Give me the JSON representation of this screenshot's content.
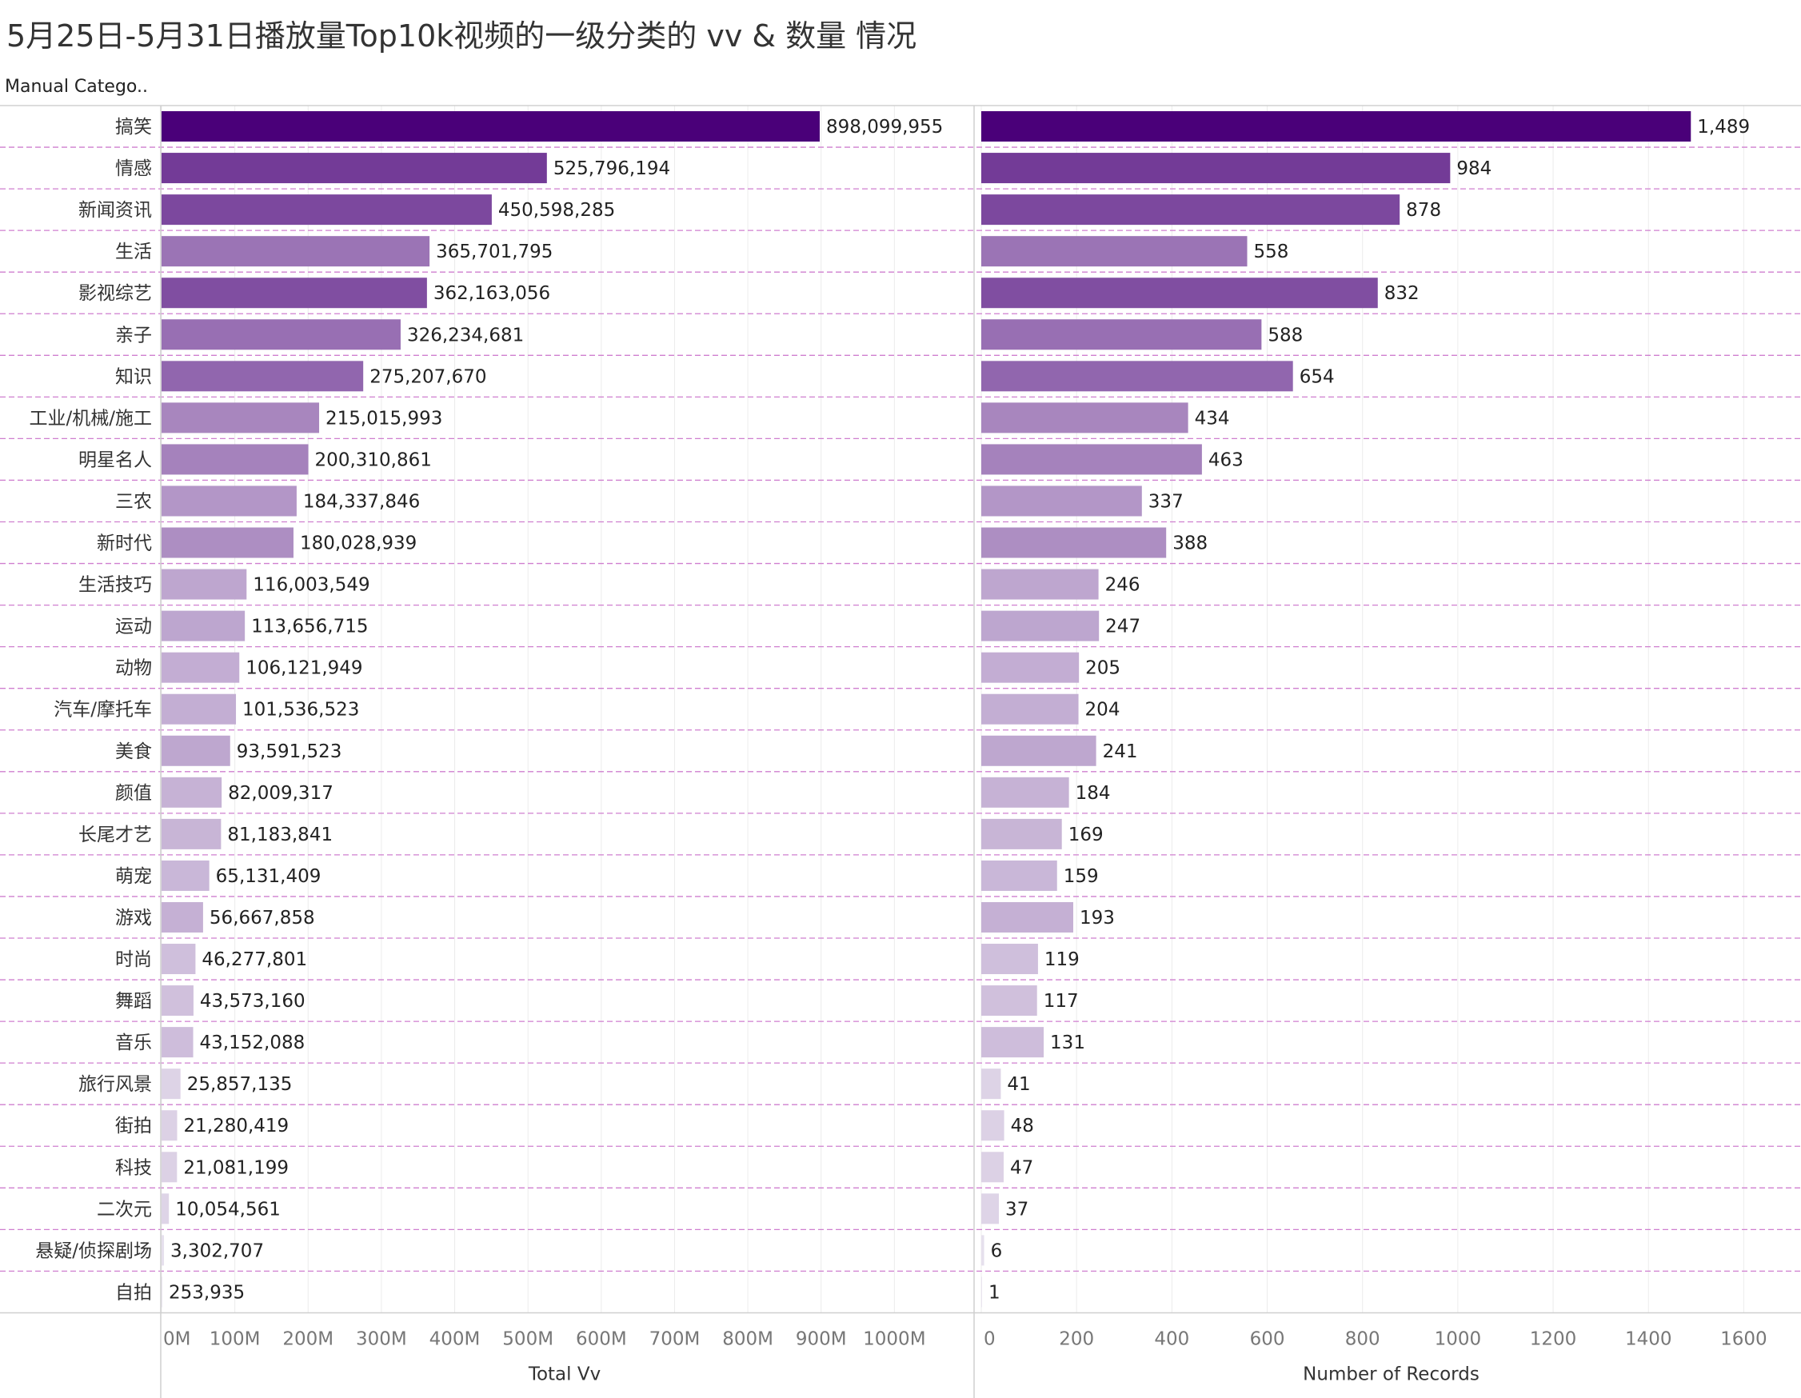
{
  "title": "5月25日-5月31日播放量Top10k视频的一级分类的 vv & 数量 情况",
  "column_header": "Manual Catego..",
  "chart_data": {
    "type": "bar",
    "orientation": "horizontal",
    "categories": [
      "搞笑",
      "情感",
      "新闻资讯",
      "生活",
      "影视综艺",
      "亲子",
      "知识",
      "工业/机械/施工",
      "明星名人",
      "三农",
      "新时代",
      "生活技巧",
      "运动",
      "动物",
      "汽车/摩托车",
      "美食",
      "颜值",
      "长尾才艺",
      "萌宠",
      "游戏",
      "时尚",
      "舞蹈",
      "音乐",
      "旅行风景",
      "街拍",
      "科技",
      "二次元",
      "悬疑/侦探剧场",
      "自拍"
    ],
    "series": [
      {
        "name": "Total Vv",
        "values": [
          898099955,
          525796194,
          450598285,
          365701795,
          362163056,
          326234681,
          275207670,
          215015993,
          200310861,
          184337846,
          180028939,
          116003549,
          113656715,
          106121949,
          101536523,
          93591523,
          82009317,
          81183841,
          65131409,
          56667858,
          46277801,
          43573160,
          43152088,
          25857135,
          21280419,
          21081199,
          10054561,
          3302707,
          253935
        ],
        "labels": [
          "898,099,955",
          "525,796,194",
          "450,598,285",
          "365,701,795",
          "362,163,056",
          "326,234,681",
          "275,207,670",
          "215,015,993",
          "200,310,861",
          "184,337,846",
          "180,028,939",
          "116,003,549",
          "113,656,715",
          "106,121,949",
          "101,536,523",
          "93,591,523",
          "82,009,317",
          "81,183,841",
          "65,131,409",
          "56,667,858",
          "46,277,801",
          "43,573,160",
          "43,152,088",
          "25,857,135",
          "21,280,419",
          "21,081,199",
          "10,054,561",
          "3,302,707",
          "253,935"
        ],
        "xlim": [
          0,
          1100000000
        ],
        "ticks": [
          0,
          100000000,
          200000000,
          300000000,
          400000000,
          500000000,
          600000000,
          700000000,
          800000000,
          900000000,
          1000000000
        ],
        "tick_labels": [
          "0M",
          "100M",
          "200M",
          "300M",
          "400M",
          "500M",
          "600M",
          "700M",
          "800M",
          "900M",
          "1000M"
        ]
      },
      {
        "name": "Number of Records",
        "values": [
          1489,
          984,
          878,
          558,
          832,
          588,
          654,
          434,
          463,
          337,
          388,
          246,
          247,
          205,
          204,
          241,
          184,
          169,
          159,
          193,
          119,
          117,
          131,
          41,
          48,
          47,
          37,
          6,
          1
        ],
        "labels": [
          "1,489",
          "984",
          "878",
          "558",
          "832",
          "588",
          "654",
          "434",
          "463",
          "337",
          "388",
          "246",
          "247",
          "205",
          "204",
          "241",
          "184",
          "169",
          "159",
          "193",
          "119",
          "117",
          "131",
          "41",
          "48",
          "47",
          "37",
          "6",
          "1"
        ],
        "xlim": [
          0,
          1700
        ],
        "ticks": [
          0,
          200,
          400,
          600,
          800,
          1000,
          1200,
          1400,
          1600
        ],
        "tick_labels": [
          "0",
          "200",
          "400",
          "600",
          "800",
          "1000",
          "1200",
          "1400",
          "1600"
        ]
      }
    ],
    "color_encoding": "Number of Records (light to dark purple)",
    "colors": {
      "dark": "#4a0079",
      "light": "#e9e4ef",
      "row_divider": "#cf7fcf",
      "grid": "#ececec"
    },
    "grid": true,
    "legend": "none"
  }
}
